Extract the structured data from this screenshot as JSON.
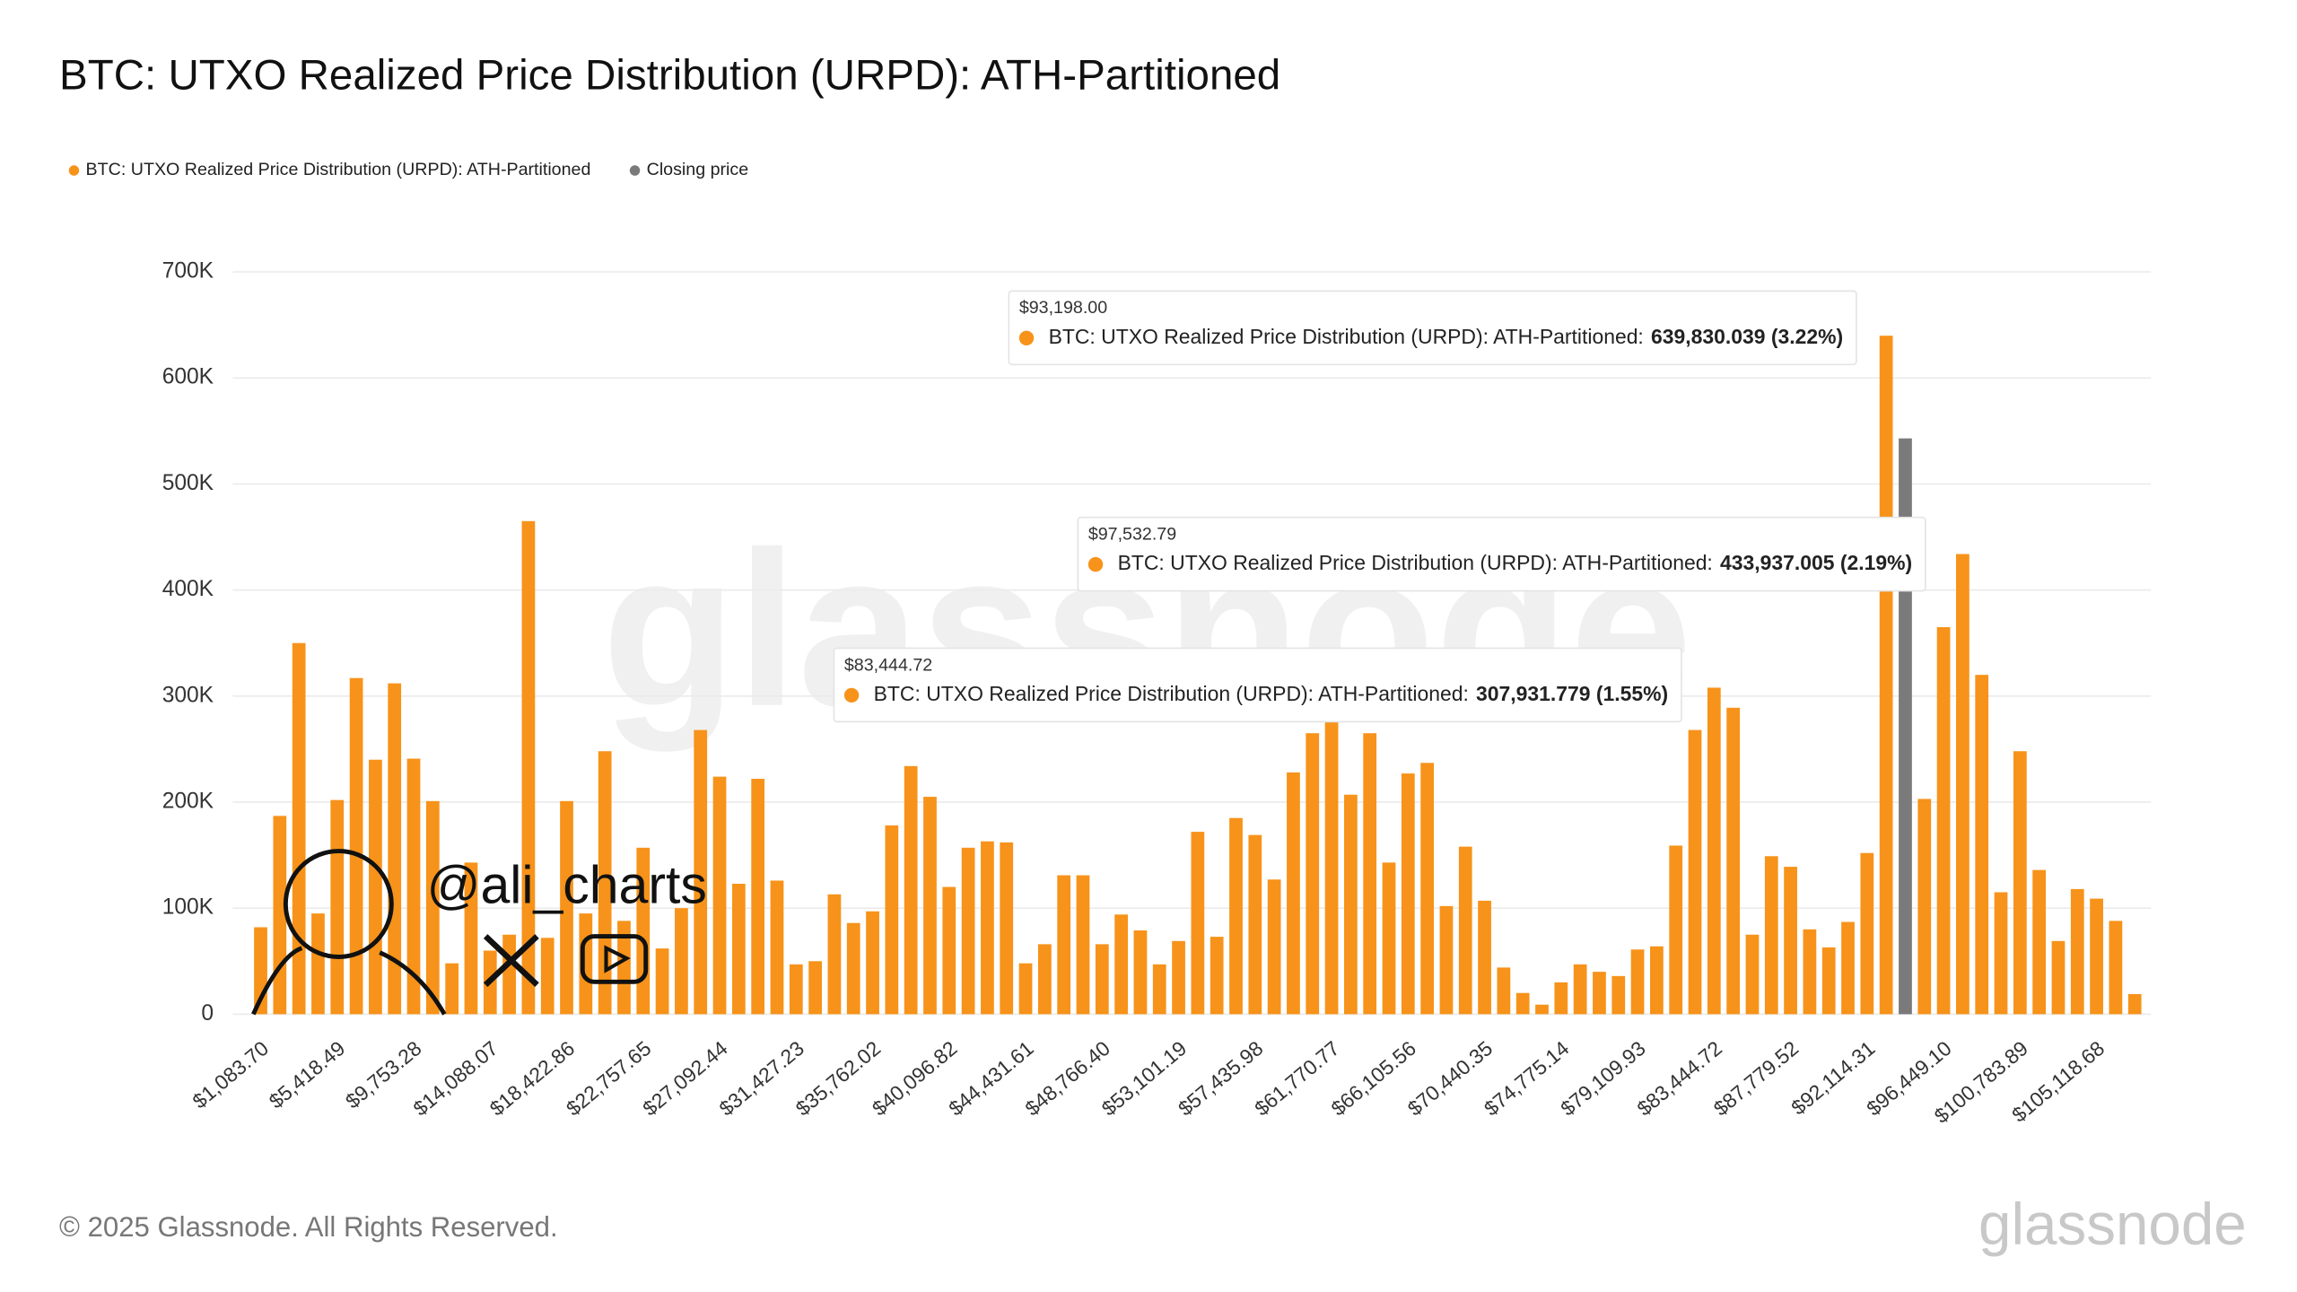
{
  "chart_data": {
    "type": "bar",
    "title": "BTC: UTXO Realized Price Distribution (URPD): ATH-Partitioned",
    "legend": "top-left",
    "grid": true,
    "categories": [
      "$1,083.70",
      null,
      null,
      null,
      "$5,418.49",
      null,
      null,
      null,
      "$9,753.28",
      null,
      null,
      null,
      "$14,088.07",
      null,
      null,
      null,
      "$18,422.86",
      null,
      null,
      null,
      "$22,757.65",
      null,
      null,
      null,
      "$27,092.44",
      null,
      null,
      null,
      "$31,427.23",
      null,
      null,
      null,
      "$35,762.02",
      null,
      null,
      null,
      "$40,096.82",
      null,
      null,
      null,
      "$44,431.61",
      null,
      null,
      null,
      "$48,766.40",
      null,
      null,
      null,
      "$53,101.19",
      null,
      null,
      null,
      "$57,435.98",
      null,
      null,
      null,
      "$61,770.77",
      null,
      null,
      null,
      "$66,105.56",
      null,
      null,
      null,
      "$70,440.35",
      null,
      null,
      null,
      "$74,775.14",
      null,
      null,
      null,
      "$79,109.93",
      null,
      null,
      null,
      "$83,444.72",
      null,
      null,
      null,
      "$87,779.52",
      null,
      null,
      null,
      "$92,114.31",
      null,
      null,
      null,
      "$96,449.10",
      null,
      null,
      null,
      "$100,783.89",
      null,
      null,
      null,
      "$105,118.68",
      null,
      null
    ],
    "series": [
      {
        "name": "BTC: UTXO Realized Price Distribution (URPD): ATH-Partitioned",
        "color": "#f7931a",
        "values": [
          82000,
          187000,
          350000,
          95000,
          202000,
          317000,
          240000,
          312000,
          241000,
          201000,
          48000,
          143000,
          60000,
          75000,
          465000,
          72000,
          201000,
          95000,
          248000,
          88000,
          157000,
          62000,
          100000,
          268000,
          224000,
          123000,
          222000,
          126000,
          47000,
          50000,
          113000,
          86000,
          97000,
          178000,
          234000,
          205000,
          120000,
          157000,
          163000,
          162000,
          48000,
          66000,
          131000,
          131000,
          66000,
          94000,
          79000,
          47000,
          69000,
          172000,
          73000,
          185000,
          169000,
          127000,
          228000,
          265000,
          285000,
          207000,
          265000,
          143000,
          227000,
          237000,
          102000,
          158000,
          107000,
          44000,
          20000,
          9000,
          30000,
          47000,
          40000,
          36000,
          61000,
          64000,
          159000,
          268000,
          307931.779,
          289000,
          75000,
          149000,
          139000,
          80000,
          63000,
          87000,
          152000,
          639830.039,
          null,
          203000,
          365000,
          433937.005,
          320000,
          115000,
          248000,
          136000,
          69000,
          118000,
          109000,
          88000,
          19000
        ]
      },
      {
        "name": "Closing price",
        "color": "#7a7a7a",
        "values": [
          null,
          null,
          null,
          null,
          null,
          null,
          null,
          null,
          null,
          null,
          null,
          null,
          null,
          null,
          null,
          null,
          null,
          null,
          null,
          null,
          null,
          null,
          null,
          null,
          null,
          null,
          null,
          null,
          null,
          null,
          null,
          null,
          null,
          null,
          null,
          null,
          null,
          null,
          null,
          null,
          null,
          null,
          null,
          null,
          null,
          null,
          null,
          null,
          null,
          null,
          null,
          null,
          null,
          null,
          null,
          null,
          null,
          null,
          null,
          null,
          null,
          null,
          null,
          null,
          null,
          null,
          null,
          null,
          null,
          null,
          null,
          null,
          null,
          null,
          null,
          null,
          null,
          null,
          null,
          null,
          null,
          null,
          null,
          null,
          null,
          null,
          543000,
          null,
          null,
          null,
          null,
          null,
          null,
          null,
          null,
          null,
          null,
          null,
          null
        ]
      }
    ],
    "ylim": [
      0,
      700000
    ],
    "yticks": [
      {
        "value": 0,
        "label": "0"
      },
      {
        "value": 100000,
        "label": "100K"
      },
      {
        "value": 200000,
        "label": "200K"
      },
      {
        "value": 300000,
        "label": "300K"
      },
      {
        "value": 400000,
        "label": "400K"
      },
      {
        "value": 500000,
        "label": "500K"
      },
      {
        "value": 600000,
        "label": "600K"
      },
      {
        "value": 700000,
        "label": "700K"
      }
    ],
    "annotations": [
      {
        "price": "$93,198.00",
        "label": "BTC: UTXO Realized Price Distribution (URPD): ATH-Partitioned:",
        "value": "639,830.039 (3.22%)"
      },
      {
        "price": "$97,532.79",
        "label": "BTC: UTXO Realized Price Distribution (URPD): ATH-Partitioned:",
        "value": "433,937.005 (2.19%)"
      },
      {
        "price": "$83,444.72",
        "label": "BTC: UTXO Realized Price Distribution (URPD): ATH-Partitioned:",
        "value": "307,931.779 (1.55%)"
      }
    ],
    "watermark": "glassnode",
    "credit": "@ali_charts",
    "footer": "© 2025 Glassnode. All Rights Reserved.",
    "brand": "glassnode"
  }
}
